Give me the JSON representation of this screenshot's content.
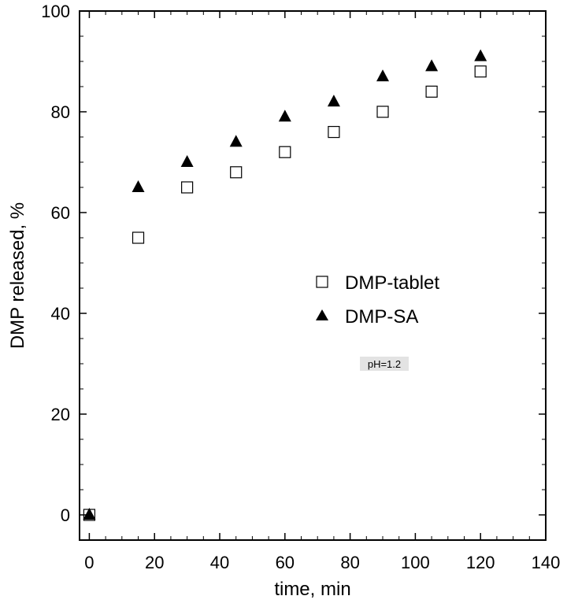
{
  "chart_data": {
    "type": "scatter",
    "title": "",
    "xlabel": "time, min",
    "ylabel": "DMP released, %",
    "xlim": [
      -3,
      140
    ],
    "ylim": [
      -5,
      100
    ],
    "xticks": [
      0,
      20,
      40,
      60,
      80,
      100,
      120,
      140
    ],
    "yticks": [
      0,
      20,
      40,
      60,
      80,
      100
    ],
    "x_tick_labels": [
      "0",
      "20",
      "40",
      "60",
      "80",
      "100",
      "120",
      "140"
    ],
    "y_tick_labels": [
      "0",
      "20",
      "40",
      "60",
      "80",
      "100"
    ],
    "grid": false,
    "legend_position": "center-right",
    "series": [
      {
        "name": "DMP-tablet",
        "marker": "open-square",
        "x": [
          0,
          15,
          30,
          45,
          60,
          75,
          90,
          105,
          120
        ],
        "y": [
          0,
          55,
          65,
          68,
          72,
          76,
          80,
          84,
          88
        ]
      },
      {
        "name": "DMP-SA",
        "marker": "filled-triangle",
        "x": [
          0,
          15,
          30,
          45,
          60,
          75,
          90,
          105,
          120
        ],
        "y": [
          0,
          65,
          70,
          74,
          79,
          82,
          87,
          89,
          91
        ]
      }
    ],
    "annotations": [
      {
        "text": "pH=1.2",
        "x": 89,
        "y": 30.5
      }
    ]
  }
}
